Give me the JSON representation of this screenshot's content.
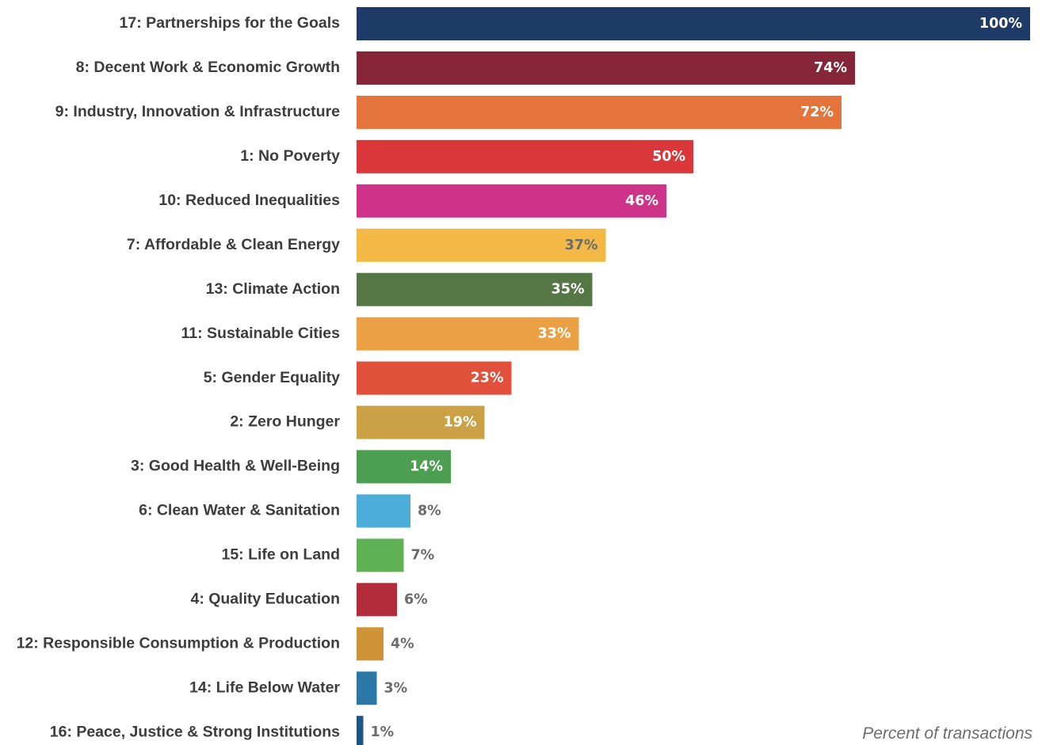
{
  "chart_data": {
    "type": "bar",
    "orientation": "horizontal",
    "categories": [
      "17: Partnerships for the Goals",
      "8: Decent Work & Economic Growth",
      "9: Industry, Innovation & Infrastructure",
      "1: No Poverty",
      "10: Reduced Inequalities",
      "7: Affordable & Clean Energy",
      "13: Climate Action",
      "11: Sustainable Cities",
      "5: Gender Equality",
      "2: Zero Hunger",
      "3: Good Health & Well-Being",
      "6: Clean Water & Sanitation",
      "15: Life on Land",
      "4: Quality Education",
      "12: Responsible Consumption & Production",
      "14: Life Below Water",
      "16: Peace, Justice & Strong Institutions"
    ],
    "values": [
      100,
      74,
      72,
      50,
      46,
      37,
      35,
      33,
      23,
      19,
      14,
      8,
      7,
      6,
      4,
      3,
      1
    ],
    "value_labels": [
      "100%",
      "74%",
      "72%",
      "50%",
      "46%",
      "37%",
      "35%",
      "33%",
      "23%",
      "19%",
      "14%",
      "8%",
      "7%",
      "6%",
      "4%",
      "3%",
      "1%"
    ],
    "colors": [
      "#1e3a66",
      "#862538",
      "#e5743c",
      "#d93739",
      "#cf3389",
      "#f3b944",
      "#547745",
      "#eba044",
      "#e0503b",
      "#caa144",
      "#4c9e50",
      "#4cadd9",
      "#60b155",
      "#b32c3c",
      "#cf9437",
      "#2a77a8",
      "#1e5585"
    ],
    "label_colors": [
      "#ffffff",
      "#ffffff",
      "#ffffff",
      "#ffffff",
      "#ffffff",
      "#6b6b6b",
      "#ffffff",
      "#ffffff",
      "#ffffff",
      "#ffffff",
      "#ffffff",
      "#6b6b6b",
      "#6b6b6b",
      "#6b6b6b",
      "#6b6b6b",
      "#6b6b6b",
      "#6b6b6b"
    ],
    "xlim": [
      0,
      100
    ],
    "note": "Percent of transactions",
    "grid": false,
    "legend": "none"
  }
}
